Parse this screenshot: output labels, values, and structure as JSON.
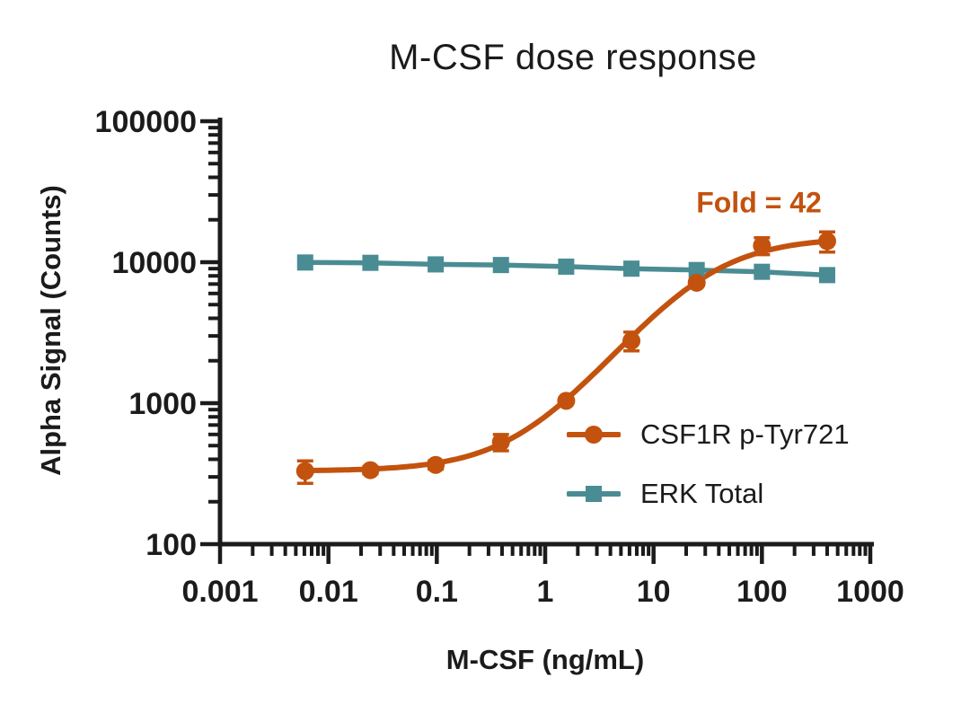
{
  "title": "M-CSF dose response",
  "annotation": {
    "text": "Fold = 42",
    "color": "#C3520E"
  },
  "colors": {
    "orange_series": "#C3520E",
    "teal_series": "#4A8C93",
    "text": "#1B1B1B",
    "axis": "#1B1B1B",
    "background": "#FFFFFF"
  },
  "axes": {
    "x": {
      "label": "M-CSF (ng/mL)",
      "scale": "log10",
      "min": 0.001,
      "max": 1000,
      "tick_labels": [
        "0.001",
        "0.01",
        "0.1",
        "1",
        "10",
        "100",
        "1000"
      ]
    },
    "y": {
      "label": "Alpha Signal (Counts)",
      "scale": "log10",
      "min": 100,
      "max": 100000,
      "tick_labels": [
        "100",
        "1000",
        "10000",
        "100000"
      ]
    }
  },
  "legend": {
    "position": "inside-right"
  },
  "chart_data": {
    "type": "line",
    "title": "M-CSF dose response",
    "xlabel": "M-CSF (ng/mL)",
    "ylabel": "Alpha Signal (Counts)",
    "xlim": [
      0.001,
      1000
    ],
    "ylim": [
      100,
      100000
    ],
    "log_x": true,
    "log_y": true,
    "grid": false,
    "annotation": "Fold = 42",
    "fold_change": 42,
    "x": [
      0.0061,
      0.0244,
      0.0977,
      0.3906,
      1.5625,
      6.25,
      25,
      100,
      400
    ],
    "series": [
      {
        "name": "CSF1R p-Tyr721",
        "color": "#C3520E",
        "marker": "circle",
        "values": [
          330,
          335,
          365,
          530,
          1040,
          2770,
          7150,
          13100,
          14100
        ],
        "errors": [
          60,
          20,
          25,
          70,
          40,
          420,
          320,
          1800,
          2300
        ],
        "fit_curve": {
          "model": "4PL",
          "bottom": 330,
          "top": 15000,
          "ec50": 28,
          "hill": 1.02
        }
      },
      {
        "name": "ERK Total",
        "color": "#4A8C93",
        "marker": "square",
        "values": [
          9950,
          9900,
          9650,
          9550,
          9300,
          9000,
          8800,
          8550,
          8100
        ],
        "errors": [
          0,
          0,
          0,
          0,
          0,
          0,
          0,
          0,
          0
        ]
      }
    ]
  }
}
